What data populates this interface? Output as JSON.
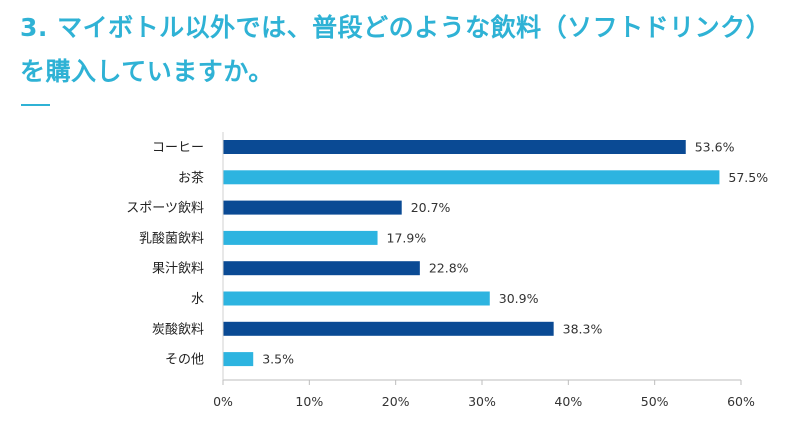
{
  "page": {
    "title": "3. マイボトル以外では、普段どのような飲料（ソフトドリンク）を購入していますか。"
  },
  "colors": {
    "title": "#2fb2d5",
    "bar_dark": "#0a4a94",
    "bar_light": "#2db4e0"
  },
  "chart_data": {
    "type": "bar",
    "orientation": "horizontal",
    "title": "",
    "xlabel": "",
    "ylabel": "",
    "categories": [
      "コーヒー",
      "お茶",
      "スポーツ飲料",
      "乳酸菌飲料",
      "果汁飲料",
      "水",
      "炭酸飲料",
      "その他"
    ],
    "values": [
      53.6,
      57.5,
      20.7,
      17.9,
      22.8,
      30.9,
      38.3,
      3.5
    ],
    "value_labels": [
      "53.6%",
      "57.5%",
      "20.7%",
      "17.9%",
      "22.8%",
      "30.9%",
      "38.3%",
      "3.5%"
    ],
    "bar_colors": [
      "#0a4a94",
      "#2db4e0",
      "#0a4a94",
      "#2db4e0",
      "#0a4a94",
      "#2db4e0",
      "#0a4a94",
      "#2db4e0"
    ],
    "xlim": [
      0,
      60
    ],
    "xticks": [
      0,
      10,
      20,
      30,
      40,
      50,
      60
    ],
    "xtick_labels": [
      "0%",
      "10%",
      "20%",
      "30%",
      "40%",
      "50%",
      "60%"
    ],
    "grid": false,
    "legend": "none"
  }
}
